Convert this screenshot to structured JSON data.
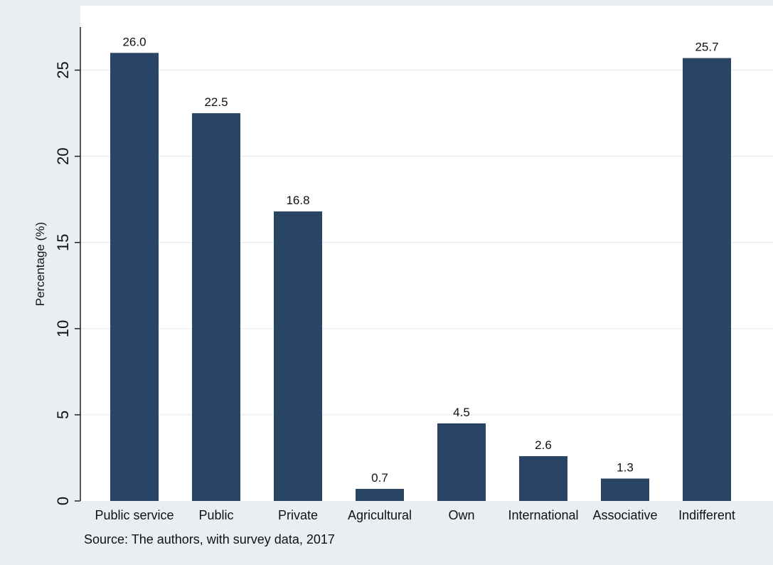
{
  "chart_data": {
    "type": "bar",
    "title": "",
    "xlabel": "",
    "ylabel": "Percentage (%)",
    "ylim": [
      0,
      27.5
    ],
    "yticks": [
      0,
      5,
      10,
      15,
      20,
      25
    ],
    "grid": true,
    "categories": [
      "Public service",
      "Public",
      "Private",
      "Agricultural",
      "Own",
      "International",
      "Associative",
      "Indifferent"
    ],
    "values": [
      26.0,
      22.5,
      16.8,
      0.7,
      4.5,
      2.6,
      1.3,
      25.7
    ],
    "data_labels": [
      "26.0",
      "22.5",
      "16.8",
      "0.7",
      "4.5",
      "2.6",
      "1.3",
      "25.7"
    ],
    "note": "Source: The authors, with survey data, 2017",
    "colors": {
      "bar": "#2a4466",
      "plot_background": "#ffffff",
      "outer_background": "#e9eef2",
      "grid": "#e8ecef",
      "axis": "#222222"
    }
  }
}
